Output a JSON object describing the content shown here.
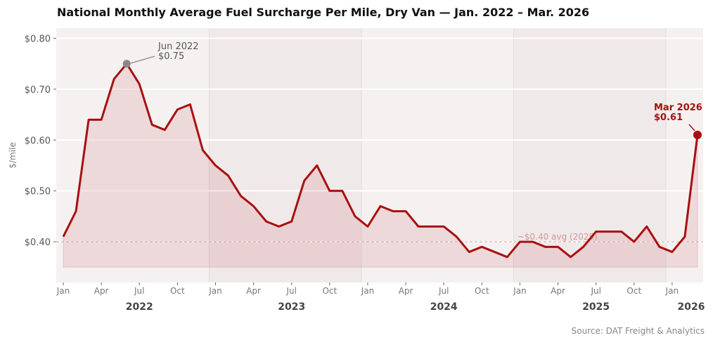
{
  "chart_data": {
    "type": "area",
    "title": "National Monthly Average Fuel Surcharge Per Mile, Dry Van — Jan. 2022 – Mar. 2026",
    "ylabel": "$/mile",
    "xlabel": "",
    "source": "Source: DAT Freight & Analytics",
    "ylim": [
      0.32,
      0.82
    ],
    "y_ticks": [
      "$0.40",
      "$0.50",
      "$0.60",
      "$0.70",
      "$0.80"
    ],
    "y_tick_values": [
      0.4,
      0.5,
      0.6,
      0.7,
      0.8
    ],
    "month_ticks": [
      {
        "i": 0,
        "label": "Jan"
      },
      {
        "i": 3,
        "label": "Apr"
      },
      {
        "i": 6,
        "label": "Jul"
      },
      {
        "i": 9,
        "label": "Oct"
      },
      {
        "i": 12,
        "label": "Jan"
      },
      {
        "i": 15,
        "label": "Apr"
      },
      {
        "i": 18,
        "label": "Jul"
      },
      {
        "i": 21,
        "label": "Oct"
      },
      {
        "i": 24,
        "label": "Jan"
      },
      {
        "i": 27,
        "label": "Apr"
      },
      {
        "i": 30,
        "label": "Jul"
      },
      {
        "i": 33,
        "label": "Oct"
      },
      {
        "i": 36,
        "label": "Jan"
      },
      {
        "i": 39,
        "label": "Apr"
      },
      {
        "i": 42,
        "label": "Jul"
      },
      {
        "i": 45,
        "label": "Oct"
      },
      {
        "i": 48,
        "label": "Jan"
      }
    ],
    "year_labels": [
      {
        "i": 6,
        "label": "2022"
      },
      {
        "i": 18,
        "label": "2023"
      },
      {
        "i": 30,
        "label": "2024"
      },
      {
        "i": 42,
        "label": "2025"
      },
      {
        "i": 49.5,
        "label": "2026"
      }
    ],
    "series": [
      {
        "start": "2022-01",
        "values": [
          0.41,
          0.46,
          0.64,
          0.64,
          0.72,
          0.75,
          0.71,
          0.63,
          0.62,
          0.66,
          0.67,
          0.58,
          0.55,
          0.53,
          0.49,
          0.47,
          0.44,
          0.43,
          0.44,
          0.52,
          0.55,
          0.5,
          0.5,
          0.45,
          0.43,
          0.47,
          0.46,
          0.46,
          0.43,
          0.43,
          0.43,
          0.41,
          0.38,
          0.39,
          0.38,
          0.37,
          0.4,
          0.4,
          0.39,
          0.39,
          0.37,
          0.39,
          0.42,
          0.42,
          0.42,
          0.4,
          0.43,
          0.39,
          0.38,
          0.41,
          0.61
        ]
      }
    ],
    "fill_baseline": 0.35,
    "reference_line": {
      "value": 0.4,
      "label": "~$0.40 avg (2025)"
    },
    "annotations": [
      {
        "i": 5,
        "line1": "Jun 2022",
        "line2": "$0.75"
      },
      {
        "i": 50,
        "line1": "Mar 2026",
        "line2": "$0.61"
      }
    ],
    "grid": true,
    "colors": {
      "line": "#a8100f",
      "fill": "#e9c9cc",
      "band_light": "#f5f1f1",
      "band_dark": "#f0e9e9",
      "peak_marker": "#888888",
      "ref_line": "#d49a9a"
    }
  }
}
